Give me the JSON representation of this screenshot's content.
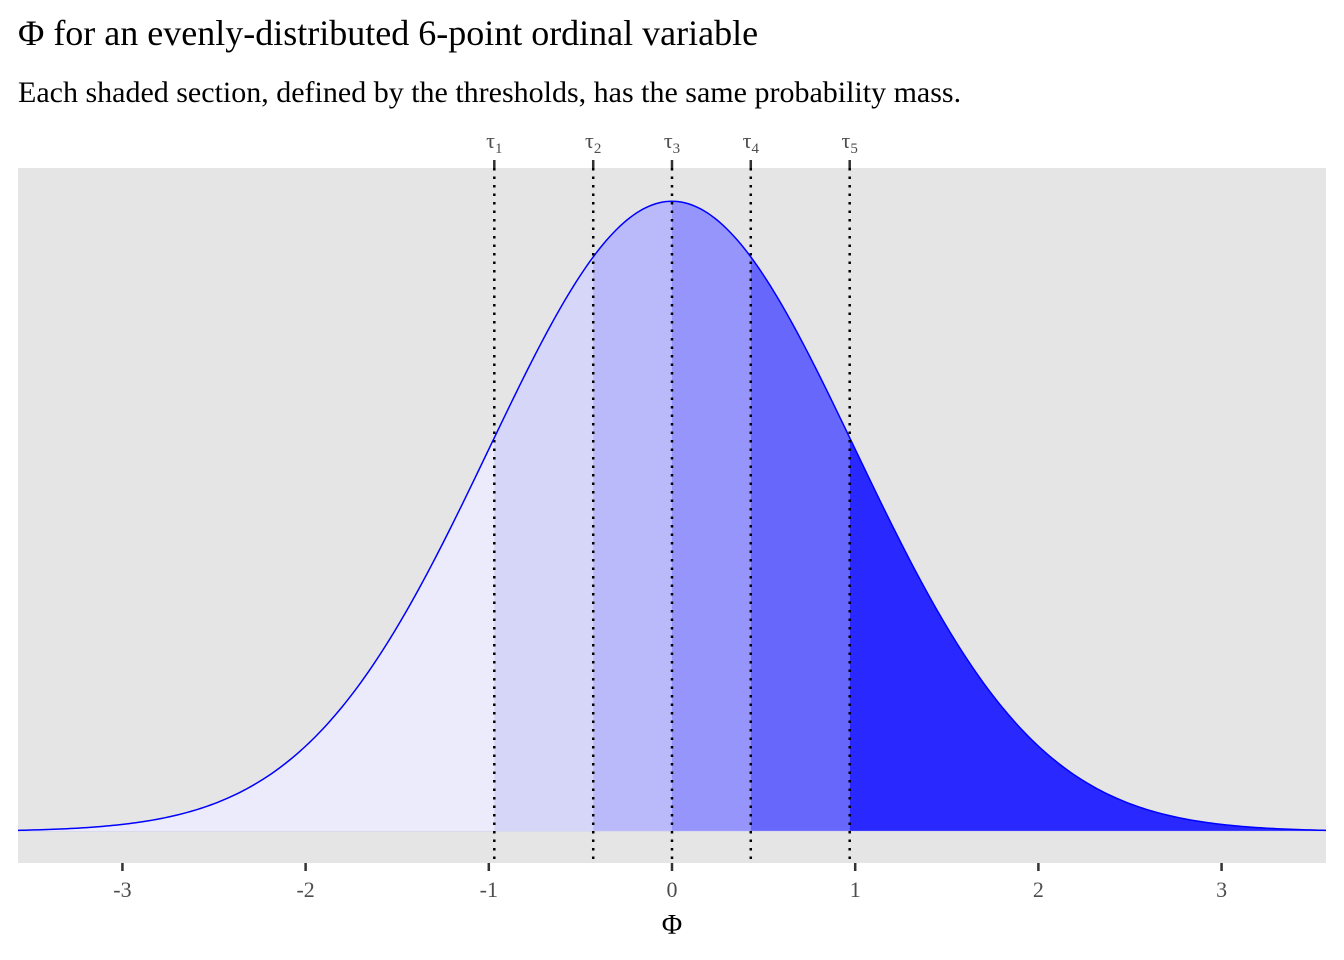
{
  "header": {
    "title": "Φ for an evenly-distributed 6-point ordinal variable",
    "subtitle": "Each shaded section, defined by the thresholds, has the same probability mass."
  },
  "chart_data": {
    "type": "area",
    "distribution": "standard-normal-density",
    "title": "Φ for an evenly-distributed 6-point ordinal variable",
    "subtitle": "Each shaded section, defined by the thresholds, has the same probability mass.",
    "xlabel": "Φ",
    "ylabel": "",
    "xlim": [
      -3.57,
      3.57
    ],
    "ylim": [
      -0.02,
      0.42
    ],
    "xticks": [
      -3,
      -2,
      -1,
      0,
      1,
      2,
      3
    ],
    "thresholds": [
      {
        "symbol": "τ",
        "index": "1",
        "value": -0.97
      },
      {
        "symbol": "τ",
        "index": "2",
        "value": -0.43
      },
      {
        "symbol": "τ",
        "index": "3",
        "value": 0.0
      },
      {
        "symbol": "τ",
        "index": "4",
        "value": 0.43
      },
      {
        "symbol": "τ",
        "index": "5",
        "value": 0.97
      }
    ],
    "sections": [
      {
        "from": -3.57,
        "to": -0.97,
        "color": "#ebebfb"
      },
      {
        "from": -0.97,
        "to": -0.43,
        "color": "#d6d6f8"
      },
      {
        "from": -0.43,
        "to": 0.0,
        "color": "#babafb"
      },
      {
        "from": 0.0,
        "to": 0.43,
        "color": "#9595fb"
      },
      {
        "from": 0.43,
        "to": 0.97,
        "color": "#6767fb"
      },
      {
        "from": 0.97,
        "to": 3.57,
        "color": "#2828ff"
      }
    ],
    "curve_color": "#0000ff",
    "panel_background": "#e5e5e5",
    "threshold_line": "dotted",
    "grid": false,
    "legend": "none"
  }
}
